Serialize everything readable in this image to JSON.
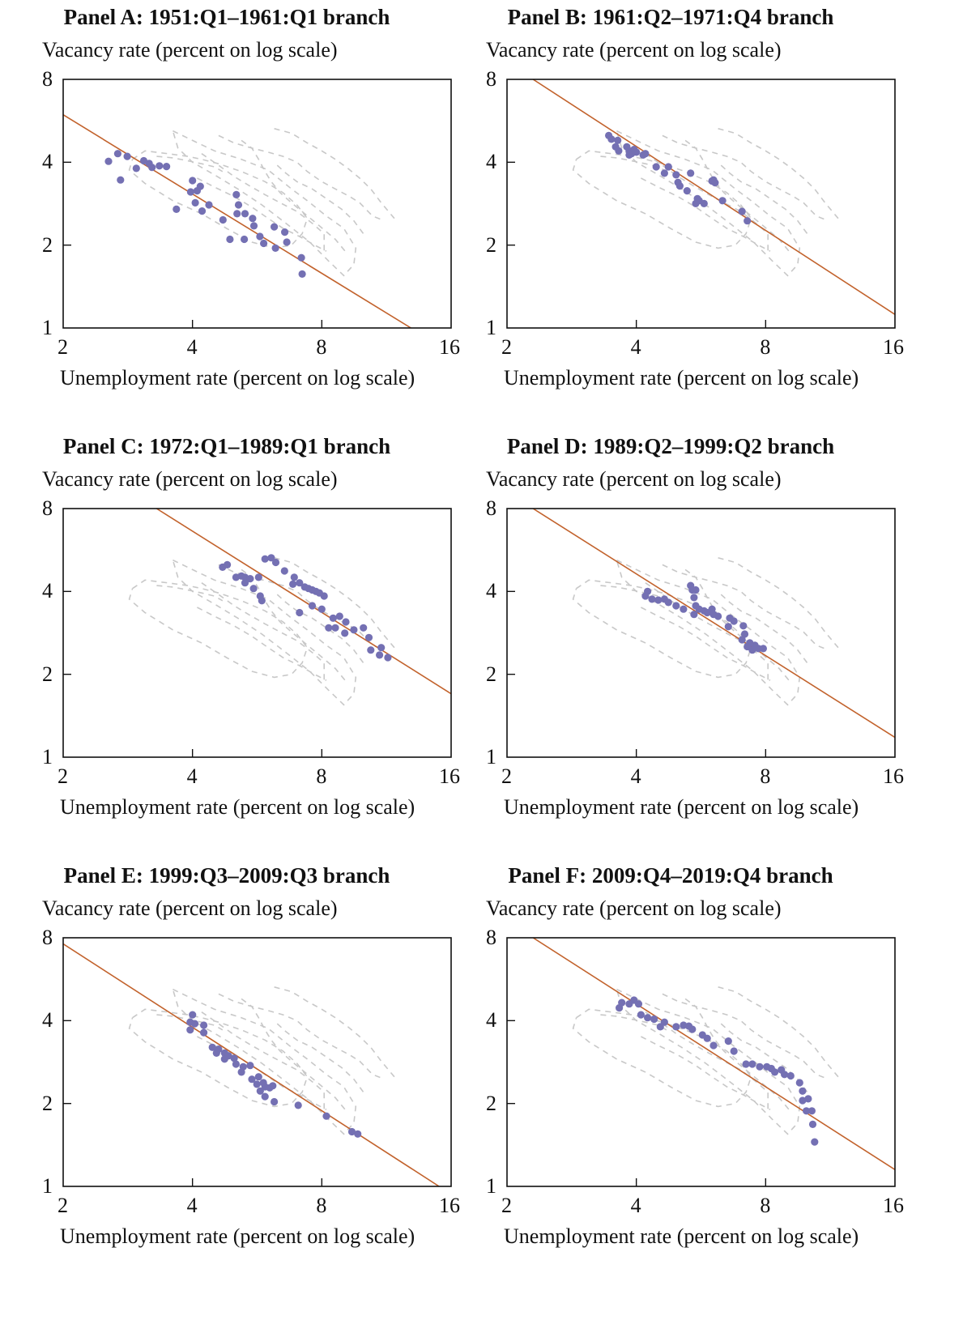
{
  "chart_data": [
    {
      "type": "scatter",
      "title": "Panel A: 1951:Q1–1961:Q1 branch",
      "xlabel": "Unemployment rate (percent on log scale)",
      "ylabel": "Vacancy rate (percent on log scale)",
      "xscale": "log",
      "yscale": "log",
      "xlim": [
        2,
        16
      ],
      "ylim": [
        1,
        8
      ],
      "xticks": [
        "2",
        "4",
        "8",
        "16"
      ],
      "yticks": [
        "1",
        "2",
        "4",
        "8"
      ],
      "grid": false,
      "points": [
        [
          2.55,
          4.03
        ],
        [
          2.68,
          4.3
        ],
        [
          2.82,
          4.2
        ],
        [
          2.96,
          3.8
        ],
        [
          3.08,
          4.05
        ],
        [
          3.17,
          3.96
        ],
        [
          3.22,
          3.83
        ],
        [
          3.35,
          3.88
        ],
        [
          3.48,
          3.86
        ],
        [
          2.72,
          3.45
        ],
        [
          3.67,
          2.7
        ],
        [
          4.0,
          3.43
        ],
        [
          3.96,
          3.12
        ],
        [
          4.1,
          3.15
        ],
        [
          4.17,
          3.27
        ],
        [
          4.06,
          2.85
        ],
        [
          4.21,
          2.66
        ],
        [
          4.37,
          2.8
        ],
        [
          4.71,
          2.47
        ],
        [
          4.89,
          2.1
        ],
        [
          5.06,
          3.05
        ],
        [
          5.12,
          2.8
        ],
        [
          5.08,
          2.6
        ],
        [
          5.3,
          2.6
        ],
        [
          5.52,
          2.5
        ],
        [
          5.56,
          2.35
        ],
        [
          5.28,
          2.1
        ],
        [
          5.74,
          2.15
        ],
        [
          5.86,
          2.03
        ],
        [
          6.2,
          2.33
        ],
        [
          6.24,
          1.95
        ],
        [
          6.63,
          2.05
        ],
        [
          6.56,
          2.23
        ],
        [
          7.2,
          1.57
        ],
        [
          7.17,
          1.8
        ]
      ],
      "fit_line": [
        [
          2.0,
          5.95
        ],
        [
          12.9,
          1.0
        ]
      ]
    },
    {
      "type": "scatter",
      "title": "Panel B: 1961:Q2–1971:Q4 branch",
      "xlabel": "Unemployment rate (percent on log scale)",
      "ylabel": "Vacancy rate (percent on log scale)",
      "xscale": "log",
      "yscale": "log",
      "xlim": [
        2,
        16
      ],
      "ylim": [
        1,
        8
      ],
      "xticks": [
        "2",
        "4",
        "8",
        "16"
      ],
      "yticks": [
        "1",
        "2",
        "4",
        "8"
      ],
      "grid": false,
      "points": [
        [
          3.45,
          5.0
        ],
        [
          3.5,
          4.85
        ],
        [
          3.62,
          4.8
        ],
        [
          3.58,
          4.55
        ],
        [
          3.64,
          4.4
        ],
        [
          3.8,
          4.55
        ],
        [
          3.85,
          4.4
        ],
        [
          3.9,
          4.3
        ],
        [
          3.95,
          4.45
        ],
        [
          3.85,
          4.25
        ],
        [
          4.0,
          4.35
        ],
        [
          4.2,
          4.3
        ],
        [
          4.15,
          4.25
        ],
        [
          4.45,
          3.85
        ],
        [
          4.75,
          3.85
        ],
        [
          4.65,
          3.65
        ],
        [
          4.95,
          3.6
        ],
        [
          5.0,
          3.38
        ],
        [
          5.05,
          3.28
        ],
        [
          5.25,
          3.15
        ],
        [
          5.55,
          2.95
        ],
        [
          5.6,
          2.9
        ],
        [
          5.5,
          2.83
        ],
        [
          5.75,
          2.83
        ],
        [
          5.35,
          3.65
        ],
        [
          6.0,
          3.42
        ],
        [
          6.1,
          3.37
        ],
        [
          6.05,
          3.45
        ],
        [
          6.35,
          2.9
        ],
        [
          7.05,
          2.65
        ],
        [
          7.25,
          2.45
        ]
      ],
      "fit_line": [
        [
          2.3,
          8.0
        ],
        [
          16.0,
          1.12
        ]
      ]
    },
    {
      "type": "scatter",
      "title": "Panel C: 1972:Q1–1989:Q1 branch",
      "xlabel": "Unemployment rate (percent on log scale)",
      "ylabel": "Vacancy rate (percent on log scale)",
      "xscale": "log",
      "yscale": "log",
      "xlim": [
        2,
        16
      ],
      "ylim": [
        1,
        8
      ],
      "xticks": [
        "2",
        "4",
        "8",
        "16"
      ],
      "yticks": [
        "1",
        "2",
        "4",
        "8"
      ],
      "grid": false,
      "points": [
        [
          4.7,
          4.9
        ],
        [
          4.82,
          5.0
        ],
        [
          5.05,
          4.5
        ],
        [
          5.2,
          4.55
        ],
        [
          5.3,
          4.5
        ],
        [
          5.45,
          4.45
        ],
        [
          5.7,
          4.5
        ],
        [
          5.3,
          4.3
        ],
        [
          5.55,
          4.1
        ],
        [
          5.75,
          3.85
        ],
        [
          5.8,
          3.7
        ],
        [
          5.9,
          5.25
        ],
        [
          6.1,
          5.3
        ],
        [
          6.25,
          5.1
        ],
        [
          6.55,
          4.75
        ],
        [
          6.9,
          4.5
        ],
        [
          6.85,
          4.25
        ],
        [
          7.1,
          4.3
        ],
        [
          7.3,
          4.15
        ],
        [
          7.45,
          4.1
        ],
        [
          7.6,
          4.05
        ],
        [
          7.75,
          4.0
        ],
        [
          7.9,
          3.95
        ],
        [
          8.1,
          3.85
        ],
        [
          7.6,
          3.55
        ],
        [
          8.0,
          3.45
        ],
        [
          8.5,
          3.2
        ],
        [
          8.3,
          2.95
        ],
        [
          8.8,
          3.25
        ],
        [
          9.1,
          3.1
        ],
        [
          9.5,
          2.9
        ],
        [
          10.0,
          2.95
        ],
        [
          8.6,
          2.95
        ],
        [
          9.05,
          2.82
        ],
        [
          10.3,
          2.72
        ],
        [
          10.4,
          2.45
        ],
        [
          11.0,
          2.5
        ],
        [
          11.4,
          2.3
        ],
        [
          10.9,
          2.35
        ],
        [
          7.1,
          3.35
        ]
      ],
      "fit_line": [
        [
          3.3,
          8.0
        ],
        [
          16.0,
          1.7
        ]
      ]
    },
    {
      "type": "scatter",
      "title": "Panel D: 1989:Q2–1999:Q2 branch",
      "xlabel": "Unemployment rate (percent on log scale)",
      "ylabel": "Vacancy rate (percent on log scale)",
      "xscale": "log",
      "yscale": "log",
      "xlim": [
        2,
        16
      ],
      "ylim": [
        1,
        8
      ],
      "xticks": [
        "2",
        "4",
        "8",
        "16"
      ],
      "yticks": [
        "1",
        "2",
        "4",
        "8"
      ],
      "grid": false,
      "points": [
        [
          4.25,
          4.0
        ],
        [
          4.2,
          3.85
        ],
        [
          4.35,
          3.75
        ],
        [
          4.5,
          3.72
        ],
        [
          4.65,
          3.75
        ],
        [
          4.75,
          3.65
        ],
        [
          4.95,
          3.55
        ],
        [
          5.15,
          3.45
        ],
        [
          5.35,
          4.2
        ],
        [
          5.4,
          4.05
        ],
        [
          5.5,
          4.05
        ],
        [
          5.45,
          3.8
        ],
        [
          5.5,
          3.55
        ],
        [
          5.6,
          3.45
        ],
        [
          5.45,
          3.3
        ],
        [
          5.75,
          3.4
        ],
        [
          5.85,
          3.35
        ],
        [
          6.0,
          3.45
        ],
        [
          6.05,
          3.3
        ],
        [
          6.2,
          3.25
        ],
        [
          6.6,
          3.2
        ],
        [
          6.75,
          3.12
        ],
        [
          6.55,
          2.98
        ],
        [
          7.1,
          3.0
        ],
        [
          7.15,
          2.8
        ],
        [
          7.05,
          2.67
        ],
        [
          7.35,
          2.6
        ],
        [
          7.25,
          2.52
        ],
        [
          7.55,
          2.55
        ],
        [
          7.7,
          2.48
        ],
        [
          7.45,
          2.45
        ],
        [
          7.9,
          2.48
        ]
      ],
      "fit_line": [
        [
          2.3,
          8.0
        ],
        [
          16.0,
          1.18
        ]
      ]
    },
    {
      "type": "scatter",
      "title": "Panel E: 1999:Q3–2009:Q3 branch",
      "xlabel": "Unemployment rate (percent on log scale)",
      "ylabel": "Vacancy rate (percent on log scale)",
      "xscale": "log",
      "yscale": "log",
      "xlim": [
        2,
        16
      ],
      "ylim": [
        1,
        8
      ],
      "xticks": [
        "2",
        "4",
        "8",
        "16"
      ],
      "yticks": [
        "1",
        "2",
        "4",
        "8"
      ],
      "grid": false,
      "points": [
        [
          4.0,
          4.2
        ],
        [
          3.95,
          3.95
        ],
        [
          4.05,
          3.9
        ],
        [
          4.25,
          3.85
        ],
        [
          4.25,
          3.62
        ],
        [
          3.95,
          3.7
        ],
        [
          4.45,
          3.2
        ],
        [
          4.55,
          3.05
        ],
        [
          4.6,
          3.15
        ],
        [
          4.75,
          3.05
        ],
        [
          4.85,
          2.98
        ],
        [
          5.0,
          2.92
        ],
        [
          4.75,
          2.9
        ],
        [
          5.05,
          2.78
        ],
        [
          5.25,
          2.72
        ],
        [
          5.45,
          2.75
        ],
        [
          5.2,
          2.6
        ],
        [
          5.5,
          2.45
        ],
        [
          5.7,
          2.5
        ],
        [
          5.65,
          2.35
        ],
        [
          5.85,
          2.38
        ],
        [
          5.9,
          2.3
        ],
        [
          5.75,
          2.22
        ],
        [
          6.05,
          2.28
        ],
        [
          6.15,
          2.32
        ],
        [
          5.9,
          2.12
        ],
        [
          6.2,
          2.03
        ],
        [
          7.05,
          1.97
        ],
        [
          8.2,
          1.8
        ],
        [
          9.4,
          1.58
        ],
        [
          9.7,
          1.55
        ]
      ],
      "fit_line": [
        [
          2.0,
          7.6
        ],
        [
          15.0,
          1.0
        ]
      ]
    },
    {
      "type": "scatter",
      "title": "Panel F: 2009:Q4–2019:Q4 branch",
      "xlabel": "Unemployment rate (percent on log scale)",
      "ylabel": "Vacancy rate (percent on log scale)",
      "xscale": "log",
      "yscale": "log",
      "xlim": [
        2,
        16
      ],
      "ylim": [
        1,
        8
      ],
      "xticks": [
        "2",
        "4",
        "8",
        "16"
      ],
      "yticks": [
        "1",
        "2",
        "4",
        "8"
      ],
      "grid": false,
      "points": [
        [
          3.65,
          4.45
        ],
        [
          3.7,
          4.65
        ],
        [
          3.85,
          4.6
        ],
        [
          3.95,
          4.75
        ],
        [
          4.05,
          4.6
        ],
        [
          4.1,
          4.2
        ],
        [
          4.25,
          4.1
        ],
        [
          4.4,
          4.05
        ],
        [
          4.65,
          3.95
        ],
        [
          4.55,
          3.8
        ],
        [
          4.95,
          3.8
        ],
        [
          5.15,
          3.85
        ],
        [
          5.3,
          3.82
        ],
        [
          5.4,
          3.72
        ],
        [
          5.7,
          3.55
        ],
        [
          5.85,
          3.45
        ],
        [
          6.05,
          3.25
        ],
        [
          6.55,
          3.37
        ],
        [
          6.75,
          3.1
        ],
        [
          7.2,
          2.78
        ],
        [
          7.45,
          2.78
        ],
        [
          7.75,
          2.72
        ],
        [
          8.05,
          2.72
        ],
        [
          8.25,
          2.68
        ],
        [
          8.4,
          2.6
        ],
        [
          8.7,
          2.65
        ],
        [
          8.85,
          2.55
        ],
        [
          9.15,
          2.52
        ],
        [
          9.6,
          2.38
        ],
        [
          9.75,
          2.22
        ],
        [
          9.75,
          2.05
        ],
        [
          10.05,
          2.08
        ],
        [
          9.95,
          1.88
        ],
        [
          10.25,
          1.88
        ],
        [
          10.3,
          1.68
        ],
        [
          10.4,
          1.45
        ]
      ],
      "fit_line": [
        [
          2.3,
          8.0
        ],
        [
          16.0,
          1.15
        ]
      ]
    }
  ],
  "background_loops": [
    [
      [
        2.9,
        4.1
      ],
      [
        3.1,
        4.4
      ],
      [
        3.5,
        4.3
      ],
      [
        3.9,
        4.2
      ],
      [
        4.2,
        4.1
      ],
      [
        4.6,
        3.95
      ],
      [
        5.2,
        3.7
      ],
      [
        5.9,
        3.4
      ],
      [
        6.5,
        3.1
      ],
      [
        7.0,
        2.8
      ],
      [
        7.4,
        2.5
      ],
      [
        7.2,
        2.2
      ],
      [
        6.8,
        2.0
      ],
      [
        6.2,
        1.95
      ],
      [
        5.5,
        2.05
      ],
      [
        4.8,
        2.3
      ],
      [
        4.2,
        2.6
      ],
      [
        3.6,
        2.9
      ],
      [
        3.1,
        3.35
      ],
      [
        2.85,
        3.75
      ],
      [
        2.9,
        4.1
      ]
    ],
    [
      [
        3.6,
        5.2
      ],
      [
        4.0,
        4.8
      ],
      [
        4.5,
        4.4
      ],
      [
        5.2,
        4.1
      ],
      [
        6.0,
        3.75
      ],
      [
        6.8,
        3.2
      ],
      [
        7.4,
        2.9
      ],
      [
        8.2,
        2.55
      ],
      [
        9.0,
        2.3
      ],
      [
        9.6,
        1.95
      ],
      [
        9.5,
        1.7
      ],
      [
        9.0,
        1.55
      ],
      [
        8.3,
        1.75
      ],
      [
        7.5,
        2.05
      ],
      [
        6.6,
        2.4
      ],
      [
        5.8,
        2.8
      ],
      [
        5.1,
        3.2
      ],
      [
        4.5,
        3.6
      ],
      [
        4.0,
        4.0
      ],
      [
        3.7,
        4.5
      ],
      [
        3.6,
        5.2
      ]
    ],
    [
      [
        4.6,
        5.0
      ],
      [
        5.0,
        4.7
      ],
      [
        5.5,
        4.5
      ],
      [
        6.0,
        4.35
      ],
      [
        6.5,
        4.2
      ],
      [
        7.0,
        4.0
      ],
      [
        7.4,
        3.7
      ],
      [
        8.0,
        3.4
      ],
      [
        8.6,
        3.2
      ],
      [
        9.3,
        3.0
      ],
      [
        9.8,
        2.85
      ],
      [
        10.5,
        2.55
      ],
      [
        11.2,
        2.45
      ]
    ],
    [
      [
        6.2,
        5.3
      ],
      [
        6.8,
        5.1
      ],
      [
        7.4,
        4.7
      ],
      [
        8.0,
        4.4
      ],
      [
        8.6,
        4.1
      ],
      [
        9.2,
        3.8
      ],
      [
        9.8,
        3.5
      ],
      [
        10.4,
        3.2
      ],
      [
        11.0,
        2.85
      ],
      [
        11.8,
        2.5
      ]
    ],
    [
      [
        4.2,
        4.3
      ],
      [
        4.6,
        3.9
      ],
      [
        5.0,
        3.55
      ],
      [
        5.4,
        3.3
      ],
      [
        5.9,
        3.05
      ],
      [
        6.4,
        2.85
      ],
      [
        7.0,
        2.65
      ],
      [
        7.6,
        2.4
      ],
      [
        8.1,
        2.2
      ],
      [
        8.1,
        1.85
      ]
    ],
    [
      [
        4.1,
        3.5
      ],
      [
        4.5,
        3.25
      ],
      [
        5.0,
        3.0
      ],
      [
        5.5,
        2.75
      ],
      [
        6.0,
        2.5
      ],
      [
        6.5,
        2.3
      ],
      [
        7.1,
        2.15
      ],
      [
        7.7,
        2.0
      ],
      [
        8.2,
        1.9
      ]
    ],
    [
      [
        5.2,
        4.8
      ],
      [
        5.5,
        4.5
      ],
      [
        5.7,
        4.1
      ],
      [
        5.9,
        3.7
      ],
      [
        6.1,
        3.4
      ],
      [
        6.4,
        3.1
      ],
      [
        6.8,
        2.85
      ],
      [
        7.3,
        2.6
      ],
      [
        7.9,
        2.35
      ],
      [
        8.6,
        2.1
      ],
      [
        9.2,
        1.85
      ]
    ],
    [
      [
        3.3,
        4.2
      ],
      [
        3.6,
        4.15
      ],
      [
        3.9,
        4.05
      ],
      [
        4.2,
        3.95
      ],
      [
        4.5,
        3.85
      ],
      [
        4.7,
        3.7
      ]
    ],
    [
      [
        6.3,
        3.9
      ],
      [
        6.6,
        3.65
      ],
      [
        7.0,
        3.4
      ],
      [
        7.6,
        3.2
      ],
      [
        8.2,
        2.95
      ],
      [
        8.9,
        2.7
      ],
      [
        9.5,
        2.45
      ],
      [
        10.0,
        2.2
      ]
    ]
  ],
  "colors": {
    "points": "#7470b3",
    "fit_line": "#c2622c",
    "background_loops": "#c8c8c8",
    "axes": "#111111"
  }
}
